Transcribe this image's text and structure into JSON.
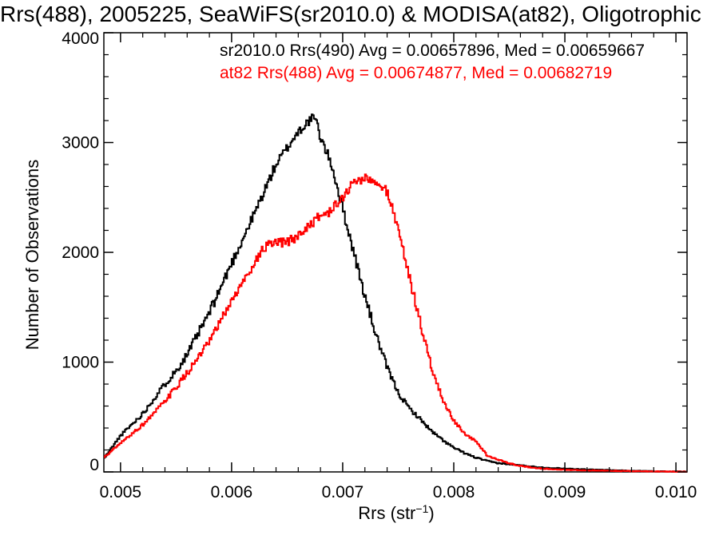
{
  "chart_data": {
    "type": "line",
    "title": "Rrs(488), 2005225, SeaWiFS(sr2010.0) & MODISA(at82), Oligotrophic",
    "xlabel": "Rrs (str",
    "xlabel_sup": "−1",
    "xlabel_close": ")",
    "ylabel": "Number of Observations",
    "xlim": [
      0.00485,
      0.0101
    ],
    "ylim": [
      0,
      4000
    ],
    "x_ticks": [
      "0.005",
      "0.006",
      "0.007",
      "0.008",
      "0.009",
      "0.010"
    ],
    "y_ticks": [
      "0",
      "1000",
      "2000",
      "3000",
      "4000"
    ],
    "grid": false,
    "legend_position": "top-right",
    "series": [
      {
        "name": "sr2010.0 Rrs(490) Avg = 0.00657896, Med = 0.00659667",
        "color": "#000000",
        "x": [
          0.00485,
          0.005,
          0.0052,
          0.0054,
          0.0055,
          0.0056,
          0.0058,
          0.006,
          0.0062,
          0.0064,
          0.0065,
          0.0066,
          0.0067,
          0.00675,
          0.0068,
          0.0069,
          0.007,
          0.0071,
          0.0072,
          0.0073,
          0.0074,
          0.0075,
          0.0076,
          0.0077,
          0.0078,
          0.0079,
          0.008,
          0.0081,
          0.0082,
          0.0083,
          0.0084,
          0.0085,
          0.0086,
          0.0087,
          0.0088,
          0.009,
          0.0092,
          0.0094,
          0.0096,
          0.0098,
          0.01,
          0.0101
        ],
        "y": [
          120,
          330,
          530,
          800,
          920,
          1070,
          1450,
          1900,
          2340,
          2800,
          2950,
          3100,
          3200,
          3230,
          3050,
          2800,
          2400,
          2000,
          1600,
          1250,
          950,
          720,
          580,
          480,
          370,
          290,
          220,
          170,
          130,
          100,
          80,
          70,
          60,
          50,
          40,
          30,
          22,
          16,
          10,
          6,
          4,
          3
        ]
      },
      {
        "name": "at82 Rrs(488) Avg = 0.00674877, Med = 0.00682719",
        "color": "#ff0000",
        "x": [
          0.00485,
          0.005,
          0.0052,
          0.0054,
          0.0056,
          0.0058,
          0.006,
          0.0061,
          0.0062,
          0.0063,
          0.0064,
          0.0065,
          0.0066,
          0.0067,
          0.0068,
          0.0069,
          0.007,
          0.0071,
          0.0072,
          0.0073,
          0.0074,
          0.0075,
          0.0076,
          0.0077,
          0.0078,
          0.0079,
          0.008,
          0.0081,
          0.0082,
          0.0083,
          0.0084,
          0.0085,
          0.0086,
          0.0087,
          0.0088,
          0.009,
          0.0092,
          0.0094,
          0.0096,
          0.0098,
          0.01,
          0.0101
        ],
        "y": [
          130,
          260,
          430,
          640,
          900,
          1180,
          1560,
          1720,
          1900,
          2050,
          2080,
          2090,
          2150,
          2250,
          2330,
          2380,
          2500,
          2640,
          2680,
          2620,
          2560,
          2220,
          1780,
          1350,
          950,
          660,
          470,
          340,
          280,
          150,
          110,
          80,
          55,
          40,
          30,
          20,
          14,
          10,
          7,
          5,
          3,
          2
        ]
      }
    ]
  }
}
